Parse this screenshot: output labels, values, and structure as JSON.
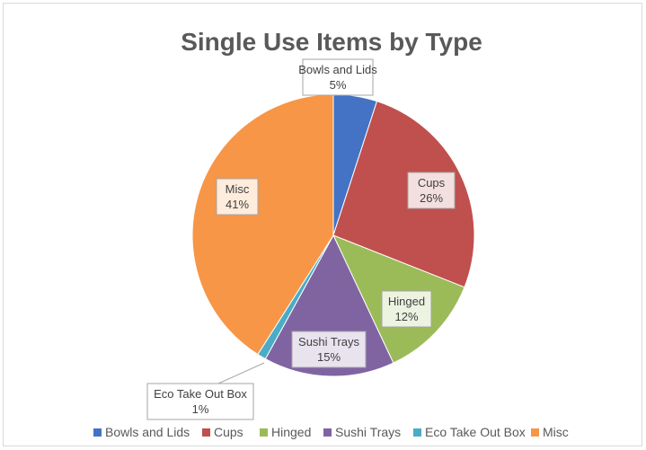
{
  "chart_data": {
    "type": "pie",
    "title": "Single Use Items by Type",
    "categories": [
      "Bowls and Lids",
      "Cups",
      "Hinged",
      "Sushi Trays",
      "Eco Take Out Box",
      "Misc"
    ],
    "values": [
      5,
      26,
      12,
      15,
      1,
      41
    ],
    "value_labels": [
      "5%",
      "26%",
      "12%",
      "15%",
      "1%",
      "41%"
    ],
    "colors": [
      "#4472c4",
      "#c0504d",
      "#9bbb59",
      "#8064a2",
      "#4bacc6",
      "#f79646"
    ],
    "legend_position": "bottom",
    "data_label_style": "callout"
  }
}
